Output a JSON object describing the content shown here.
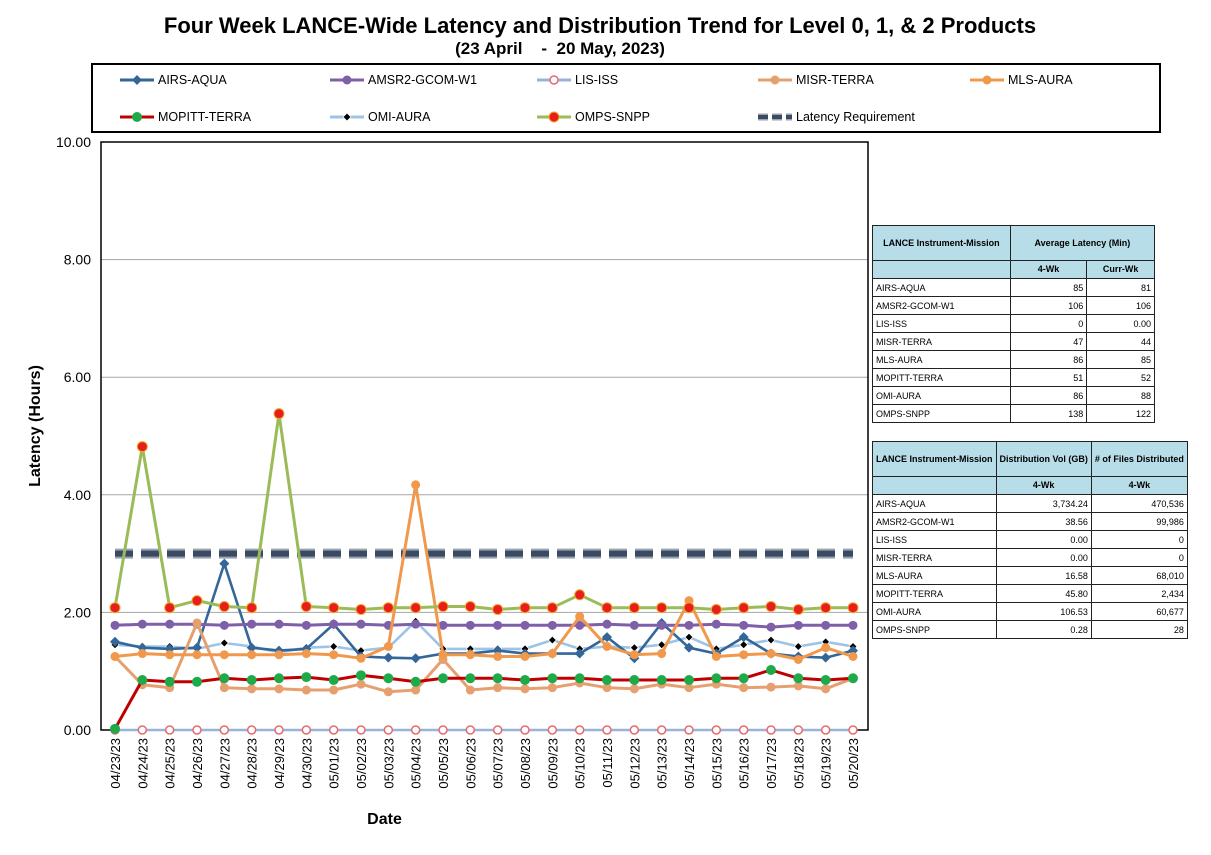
{
  "chart_data": {
    "type": "line",
    "title": "Four Week LANCE-Wide Latency and Distribution Trend for Level 0, 1, & 2 Products",
    "subtitle": "(23 April    -  20 May, 2023)",
    "xlabel": "Date",
    "ylabel": "Latency (Hours)",
    "ylim": [
      0,
      10
    ],
    "yticks": [
      "0.00",
      "2.00",
      "4.00",
      "6.00",
      "8.00",
      "10.00"
    ],
    "grid": "horizontal",
    "legend_position": "top",
    "categories": [
      "04/23/23",
      "04/24/23",
      "04/25/23",
      "04/26/23",
      "04/27/23",
      "04/28/23",
      "04/29/23",
      "04/30/23",
      "05/01/23",
      "05/02/23",
      "05/03/23",
      "05/04/23",
      "05/05/23",
      "05/06/23",
      "05/07/23",
      "05/08/23",
      "05/09/23",
      "05/10/23",
      "05/11/23",
      "05/12/23",
      "05/13/23",
      "05/14/23",
      "05/15/23",
      "05/16/23",
      "05/17/23",
      "05/18/23",
      "05/19/23",
      "05/20/23"
    ],
    "series": [
      {
        "name": "AIRS-AQUA",
        "color": "#336699",
        "marker": "diamond",
        "values": [
          1.5,
          1.4,
          1.38,
          1.4,
          2.83,
          1.4,
          1.35,
          1.38,
          1.8,
          1.25,
          1.23,
          1.22,
          1.3,
          1.3,
          1.35,
          1.3,
          1.3,
          1.3,
          1.58,
          1.22,
          1.82,
          1.4,
          1.3,
          1.58,
          1.3,
          1.25,
          1.23,
          1.35
        ]
      },
      {
        "name": "AMSR2-GCOM-W1",
        "color": "#7f5fa8",
        "marker": "circle",
        "values": [
          1.78,
          1.8,
          1.8,
          1.8,
          1.78,
          1.8,
          1.8,
          1.78,
          1.8,
          1.8,
          1.78,
          1.8,
          1.78,
          1.78,
          1.78,
          1.78,
          1.78,
          1.78,
          1.8,
          1.78,
          1.78,
          1.78,
          1.8,
          1.78,
          1.75,
          1.78,
          1.78,
          1.78
        ]
      },
      {
        "name": "LIS-ISS",
        "color": "#99b3dd",
        "marker": "open-circle",
        "values": [
          0,
          0,
          0,
          0,
          0,
          0,
          0,
          0,
          0,
          0,
          0,
          0,
          0,
          0,
          0,
          0,
          0,
          0,
          0,
          0,
          0,
          0,
          0,
          0,
          0,
          0,
          0,
          0
        ]
      },
      {
        "name": "MISR-TERRA",
        "color": "#e6a070",
        "marker": "circle",
        "values": [
          1.25,
          0.77,
          0.72,
          1.82,
          0.72,
          0.7,
          0.7,
          0.68,
          0.68,
          0.78,
          0.65,
          0.68,
          1.2,
          0.68,
          0.72,
          0.7,
          0.72,
          0.8,
          0.72,
          0.7,
          0.78,
          0.72,
          0.78,
          0.72,
          0.73,
          0.75,
          0.7,
          0.88
        ]
      },
      {
        "name": "MLS-AURA",
        "color": "#f0994d",
        "marker": "circle",
        "values": [
          1.25,
          1.3,
          1.28,
          1.28,
          1.28,
          1.28,
          1.28,
          1.3,
          1.28,
          1.22,
          1.42,
          4.17,
          1.28,
          1.28,
          1.25,
          1.25,
          1.3,
          1.93,
          1.42,
          1.28,
          1.3,
          2.2,
          1.25,
          1.28,
          1.3,
          1.2,
          1.4,
          1.25
        ]
      },
      {
        "name": "MOPITT-TERRA",
        "color": "#c00000",
        "marker": "circle-green",
        "values": [
          0.02,
          0.85,
          0.82,
          0.82,
          0.88,
          0.85,
          0.88,
          0.9,
          0.85,
          0.93,
          0.88,
          0.82,
          0.88,
          0.88,
          0.88,
          0.85,
          0.88,
          0.88,
          0.85,
          0.85,
          0.85,
          0.85,
          0.88,
          0.88,
          1.02,
          0.88,
          0.85,
          0.88
        ]
      },
      {
        "name": "OMI-AURA",
        "color": "#9dc3e6",
        "marker": "diamond-black",
        "values": [
          1.45,
          1.42,
          1.42,
          1.38,
          1.48,
          1.42,
          1.32,
          1.4,
          1.42,
          1.35,
          1.4,
          1.85,
          1.38,
          1.38,
          1.38,
          1.38,
          1.53,
          1.38,
          1.42,
          1.4,
          1.45,
          1.58,
          1.38,
          1.45,
          1.53,
          1.42,
          1.5,
          1.42
        ]
      },
      {
        "name": "OMPS-SNPP",
        "color": "#9bbb59",
        "marker": "circle-red",
        "values": [
          2.08,
          4.82,
          2.08,
          2.2,
          2.1,
          2.08,
          5.38,
          2.1,
          2.08,
          2.05,
          2.08,
          2.08,
          2.1,
          2.1,
          2.05,
          2.08,
          2.08,
          2.3,
          2.08,
          2.08,
          2.08,
          2.08,
          2.05,
          2.08,
          2.1,
          2.05,
          2.08,
          2.08
        ]
      },
      {
        "name": "Latency Requirement",
        "color": "#3b4a63",
        "marker": "dashed",
        "values": [
          3,
          3,
          3,
          3,
          3,
          3,
          3,
          3,
          3,
          3,
          3,
          3,
          3,
          3,
          3,
          3,
          3,
          3,
          3,
          3,
          3,
          3,
          3,
          3,
          3,
          3,
          3,
          3
        ]
      }
    ]
  },
  "latency_table": {
    "headers": {
      "col1": "LANCE Instrument-Mission",
      "col2": "Average Latency (Min)",
      "sub1": "4-Wk",
      "sub2": "Curr-Wk"
    },
    "rows": [
      {
        "name": "AIRS-AQUA",
        "a": "85",
        "b": "81"
      },
      {
        "name": "AMSR2-GCOM-W1",
        "a": "106",
        "b": "106"
      },
      {
        "name": "LIS-ISS",
        "a": "0",
        "b": "0.00"
      },
      {
        "name": "MISR-TERRA",
        "a": "47",
        "b": "44"
      },
      {
        "name": "MLS-AURA",
        "a": "86",
        "b": "85"
      },
      {
        "name": "MOPITT-TERRA",
        "a": "51",
        "b": "52"
      },
      {
        "name": "OMI-AURA",
        "a": "86",
        "b": "88"
      },
      {
        "name": "OMPS-SNPP",
        "a": "138",
        "b": "122"
      }
    ]
  },
  "distribution_table": {
    "headers": {
      "col1": "LANCE Instrument-Mission",
      "col2": "Distribution Vol (GB)",
      "col3": "# of Files Distributed",
      "sub1": "4-Wk",
      "sub2": "4-Wk"
    },
    "rows": [
      {
        "name": "AIRS-AQUA",
        "a": "3,734.24",
        "b": "470,536"
      },
      {
        "name": "AMSR2-GCOM-W1",
        "a": "38.56",
        "b": "99,986"
      },
      {
        "name": "LIS-ISS",
        "a": "0.00",
        "b": "0"
      },
      {
        "name": "MISR-TERRA",
        "a": "0.00",
        "b": "0"
      },
      {
        "name": "MLS-AURA",
        "a": "16.58",
        "b": "68,010"
      },
      {
        "name": "MOPITT-TERRA",
        "a": "45.80",
        "b": "2,434"
      },
      {
        "name": "OMI-AURA",
        "a": "106.53",
        "b": "60,677"
      },
      {
        "name": "OMPS-SNPP",
        "a": "0.28",
        "b": "28"
      }
    ]
  }
}
